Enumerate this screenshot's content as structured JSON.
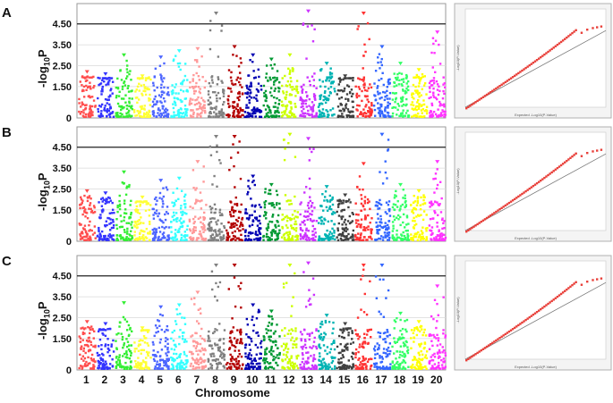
{
  "chart_data": [
    {
      "panel": "A",
      "type": "scatter",
      "ylabel": "-log10P",
      "yticks": [
        "0",
        "1.50",
        "2.50",
        "3.50",
        "4.50"
      ],
      "threshold": 4.5,
      "ylim": [
        0,
        5.3
      ],
      "xlabel": "Chromosome",
      "categories": [
        "1",
        "2",
        "3",
        "4",
        "5",
        "6",
        "7",
        "8",
        "9",
        "10",
        "11",
        "12",
        "13",
        "14",
        "15",
        "16",
        "17",
        "18",
        "19",
        "20"
      ],
      "series": [
        {
          "values": [
            2.2,
            2.1,
            3.0,
            2.0,
            2.9,
            3.2,
            3.3,
            5.0,
            3.4,
            3.0,
            2.8,
            3.0,
            5.1,
            2.6,
            2.0,
            5.0,
            3.4,
            2.6,
            2.3,
            4.1
          ]
        }
      ]
    },
    {
      "panel": "B",
      "type": "scatter",
      "ylabel": "-log10P",
      "yticks": [
        "0",
        "1.50",
        "2.50",
        "3.50",
        "4.50"
      ],
      "threshold": 4.5,
      "ylim": [
        0,
        5.3
      ],
      "categories": [
        "1",
        "2",
        "3",
        "4",
        "5",
        "6",
        "7",
        "8",
        "9",
        "10",
        "11",
        "12",
        "13",
        "14",
        "15",
        "16",
        "17",
        "18",
        "19",
        "20"
      ],
      "series": [
        {
          "values": [
            2.4,
            2.3,
            3.3,
            2.1,
            2.9,
            3.0,
            3.8,
            5.0,
            5.0,
            3.1,
            2.7,
            5.1,
            4.9,
            2.6,
            2.2,
            3.7,
            5.1,
            2.7,
            2.4,
            3.8
          ]
        }
      ]
    },
    {
      "panel": "C",
      "type": "scatter",
      "ylabel": "-log10P",
      "yticks": [
        "0",
        "1.50",
        "2.50",
        "3.50",
        "4.50"
      ],
      "threshold": 4.5,
      "ylim": [
        0,
        5.3
      ],
      "categories": [
        "1",
        "2",
        "3",
        "4",
        "5",
        "6",
        "7",
        "8",
        "9",
        "10",
        "11",
        "12",
        "13",
        "14",
        "15",
        "16",
        "17",
        "18",
        "19",
        "20"
      ],
      "series": [
        {
          "values": [
            2.3,
            2.2,
            3.2,
            2.0,
            3.0,
            3.1,
            3.7,
            5.0,
            5.0,
            3.1,
            2.8,
            5.0,
            5.1,
            2.6,
            2.2,
            5.0,
            5.0,
            2.7,
            2.3,
            4.0
          ]
        }
      ]
    }
  ],
  "qq_panels": [
    {
      "xlabel": "Expected -Log10(P-Value)",
      "ylabel": "-Log10(P-Value)"
    },
    {
      "xlabel": "Expected -Log10(P-Value)",
      "ylabel": "-Log10(P-Value)"
    },
    {
      "xlabel": "Expected -Log10(P-Value)",
      "ylabel": "-Log10(P-Value)"
    }
  ],
  "colors": [
    "#ff4d4d",
    "#3333ff",
    "#33ee33",
    "#ffff33",
    "#4d66ff",
    "#33ffff",
    "#ff9999",
    "#808080",
    "#b30000",
    "#0000b3",
    "#009933",
    "#ccff00",
    "#cc33ff",
    "#00b3b3",
    "#404040",
    "#ff3333",
    "#3366ff",
    "#33ff66",
    "#ffff00",
    "#ff33ff"
  ],
  "labels": {
    "panel_letters": [
      "A",
      "B",
      "C"
    ],
    "ylabel_main": "-log",
    "ylabel_sub": "10",
    "ylabel_end": "P",
    "xtitle": "Chromosome"
  }
}
